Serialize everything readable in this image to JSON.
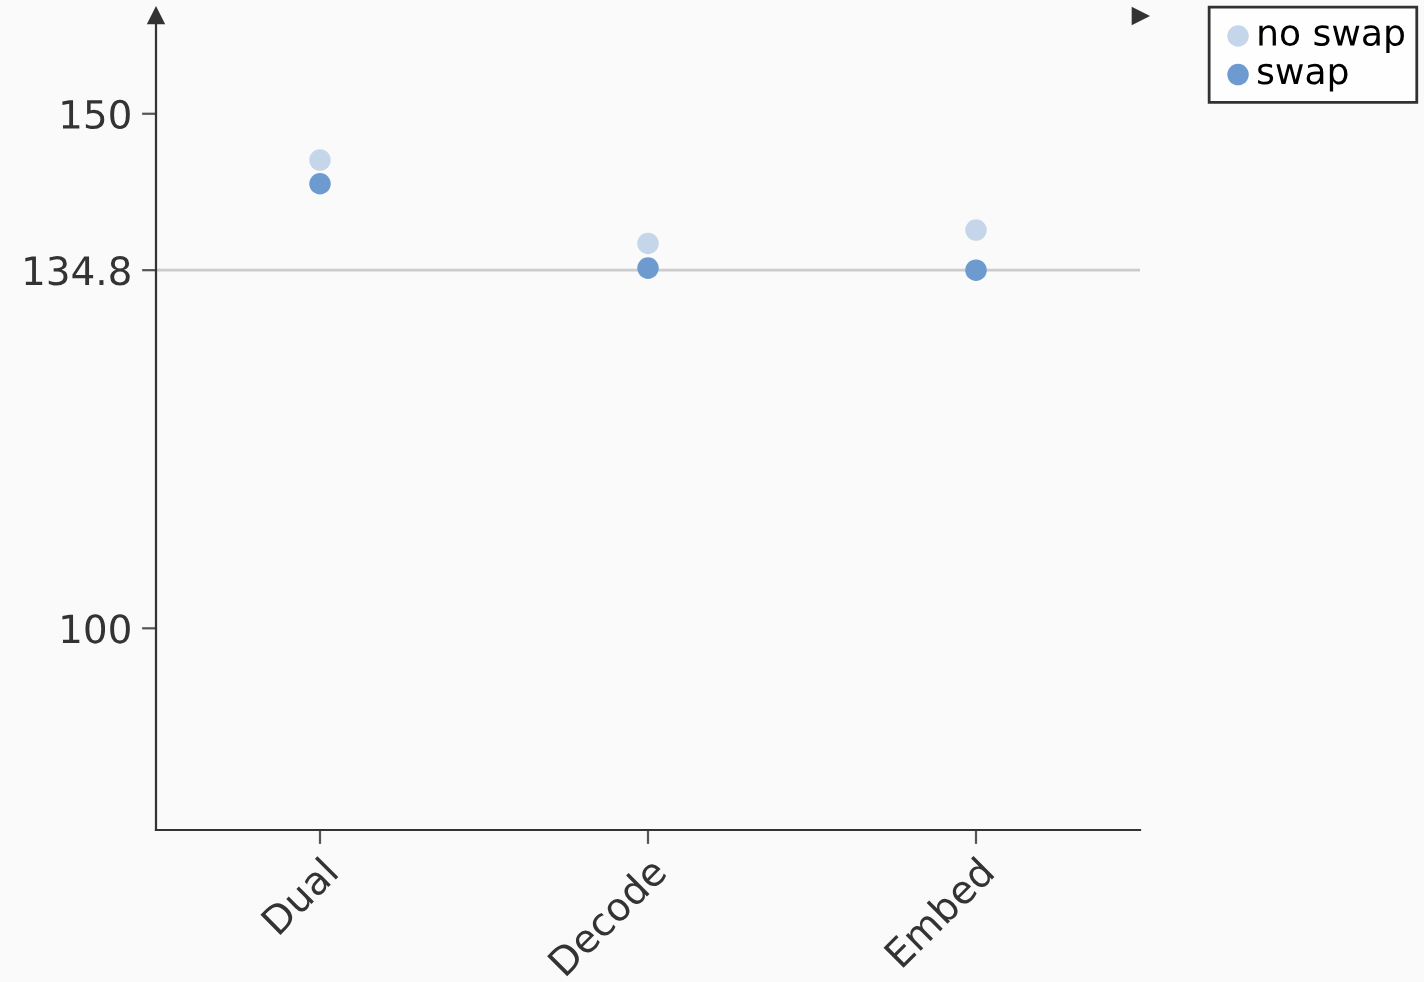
{
  "chart_data": {
    "type": "scatter",
    "categories": [
      "Dual",
      "Decode",
      "Embed"
    ],
    "series": [
      {
        "name": "no swap",
        "color": "#c6d6ea",
        "values": [
          145.5,
          137.4,
          138.7
        ]
      },
      {
        "name": "swap",
        "color": "#6d9bd0",
        "values": [
          143.2,
          135.0,
          134.8
        ]
      }
    ],
    "ylim": [
      80.4,
      159.5
    ],
    "yticks": [
      100,
      134.8,
      150
    ],
    "ref_lines": [
      {
        "axis": "y",
        "value": 134.8,
        "color": "#cccccc"
      }
    ],
    "marker": "circle",
    "grid": false,
    "legend": "top right"
  }
}
